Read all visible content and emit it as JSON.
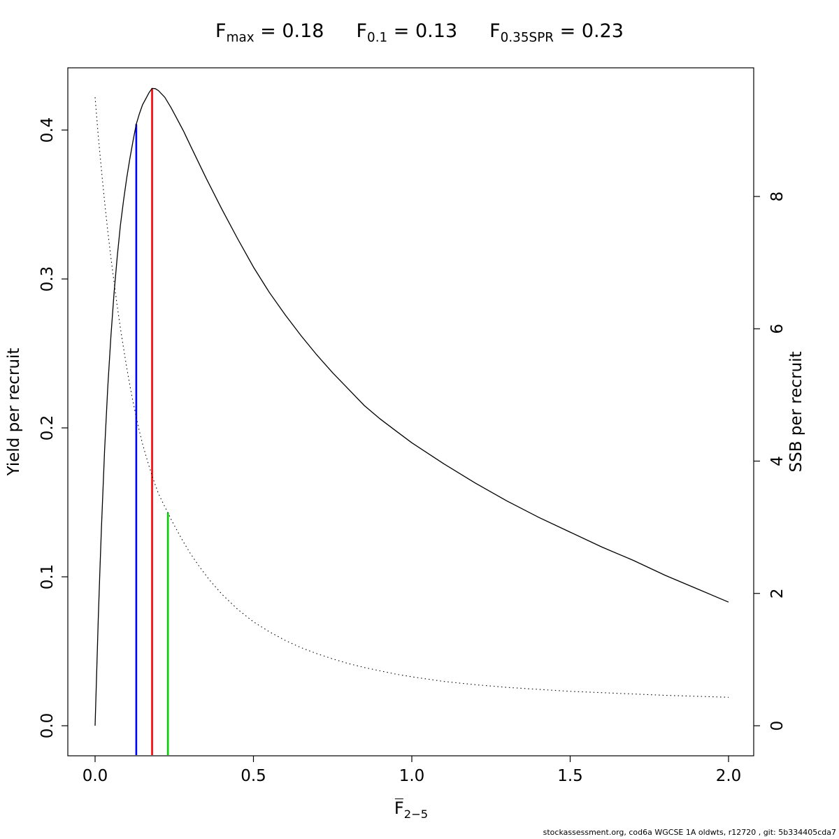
{
  "title": {
    "segments": [
      {
        "base": "F",
        "sub": "max",
        "rest": " = 0.18"
      },
      {
        "base": "F",
        "sub": "0.1",
        "rest": " = 0.13"
      },
      {
        "base": "F",
        "sub": "0.35SPR",
        "rest": " = 0.23"
      }
    ]
  },
  "footer": "stockassessment.org, cod6a WGCSE 1A oldwts, r12720 , git: 5b334405cda7",
  "chart_data": {
    "type": "line",
    "xlabel_base": "F",
    "xlabel_sub": "2−5",
    "ylabel_left": "Yield per recruit",
    "ylabel_right": "SSB per recruit",
    "xlim": [
      -0.086,
      2.079
    ],
    "ylim_left": [
      -0.02,
      0.442
    ],
    "ylim_right": [
      -0.45,
      9.95
    ],
    "grid": false,
    "x_ticks": [
      0.0,
      0.5,
      1.0,
      1.5,
      2.0
    ],
    "x_tick_labels": [
      "0.0",
      "0.5",
      "1.0",
      "1.5",
      "2.0"
    ],
    "y_left_ticks": [
      0.0,
      0.1,
      0.2,
      0.3,
      0.4
    ],
    "y_left_tick_labels": [
      "0.0",
      "0.1",
      "0.2",
      "0.3",
      "0.4"
    ],
    "y_right_ticks": [
      0,
      2,
      4,
      6,
      8
    ],
    "y_right_tick_labels": [
      "0",
      "2",
      "4",
      "6",
      "8"
    ],
    "reference_values": {
      "F_max": 0.18,
      "F_0.1": 0.13,
      "F_0.35SPR": 0.23
    },
    "series": [
      {
        "name": "yield-per-recruit",
        "axis": "left",
        "style": "solid",
        "color": "#000000",
        "points": [
          [
            0,
            0
          ],
          [
            0.005,
            0.036
          ],
          [
            0.01,
            0.071
          ],
          [
            0.015,
            0.103
          ],
          [
            0.02,
            0.133
          ],
          [
            0.03,
            0.185
          ],
          [
            0.04,
            0.227
          ],
          [
            0.05,
            0.262
          ],
          [
            0.06,
            0.291
          ],
          [
            0.07,
            0.315
          ],
          [
            0.08,
            0.336
          ],
          [
            0.09,
            0.353
          ],
          [
            0.1,
            0.368
          ],
          [
            0.11,
            0.381
          ],
          [
            0.12,
            0.393
          ],
          [
            0.13,
            0.404
          ],
          [
            0.14,
            0.411
          ],
          [
            0.15,
            0.417
          ],
          [
            0.16,
            0.421
          ],
          [
            0.17,
            0.425
          ],
          [
            0.18,
            0.428
          ],
          [
            0.19,
            0.4278
          ],
          [
            0.2,
            0.4265
          ],
          [
            0.22,
            0.422
          ],
          [
            0.24,
            0.415
          ],
          [
            0.26,
            0.407
          ],
          [
            0.28,
            0.399
          ],
          [
            0.3,
            0.39
          ],
          [
            0.35,
            0.368
          ],
          [
            0.4,
            0.347
          ],
          [
            0.45,
            0.327
          ],
          [
            0.5,
            0.308
          ],
          [
            0.55,
            0.291
          ],
          [
            0.6,
            0.276
          ],
          [
            0.65,
            0.262
          ],
          [
            0.7,
            0.249
          ],
          [
            0.75,
            0.237
          ],
          [
            0.8,
            0.226
          ],
          [
            0.85,
            0.215
          ],
          [
            0.9,
            0.206
          ],
          [
            0.95,
            0.198
          ],
          [
            1,
            0.19
          ],
          [
            1.1,
            0.176
          ],
          [
            1.2,
            0.163
          ],
          [
            1.3,
            0.151
          ],
          [
            1.4,
            0.14
          ],
          [
            1.5,
            0.13
          ],
          [
            1.6,
            0.12
          ],
          [
            1.7,
            0.111
          ],
          [
            1.8,
            0.101
          ],
          [
            1.9,
            0.092
          ],
          [
            2,
            0.083
          ]
        ]
      },
      {
        "name": "ssb-per-recruit",
        "axis": "right",
        "style": "dotted",
        "color": "#000000",
        "points": [
          [
            0,
            9.5
          ],
          [
            0.01,
            8.92
          ],
          [
            0.02,
            8.4
          ],
          [
            0.03,
            7.92
          ],
          [
            0.04,
            7.48
          ],
          [
            0.05,
            7.07
          ],
          [
            0.06,
            6.7
          ],
          [
            0.07,
            6.34
          ],
          [
            0.08,
            6.01
          ],
          [
            0.09,
            5.7
          ],
          [
            0.1,
            5.41
          ],
          [
            0.11,
            5.14
          ],
          [
            0.12,
            4.89
          ],
          [
            0.13,
            4.66
          ],
          [
            0.14,
            4.45
          ],
          [
            0.15,
            4.26
          ],
          [
            0.16,
            4.09
          ],
          [
            0.17,
            3.93
          ],
          [
            0.18,
            3.78
          ],
          [
            0.19,
            3.64
          ],
          [
            0.2,
            3.51
          ],
          [
            0.21,
            3.41
          ],
          [
            0.22,
            3.31
          ],
          [
            0.23,
            3.22
          ],
          [
            0.24,
            3.12
          ],
          [
            0.26,
            2.94
          ],
          [
            0.28,
            2.77
          ],
          [
            0.3,
            2.61
          ],
          [
            0.33,
            2.4
          ],
          [
            0.36,
            2.21
          ],
          [
            0.4,
            1.99
          ],
          [
            0.45,
            1.76
          ],
          [
            0.5,
            1.57
          ],
          [
            0.55,
            1.42
          ],
          [
            0.6,
            1.29
          ],
          [
            0.65,
            1.18
          ],
          [
            0.7,
            1.09
          ],
          [
            0.75,
            1.01
          ],
          [
            0.8,
            0.94
          ],
          [
            0.85,
            0.88
          ],
          [
            0.9,
            0.83
          ],
          [
            0.95,
            0.78
          ],
          [
            1,
            0.74
          ],
          [
            1.1,
            0.67
          ],
          [
            1.2,
            0.62
          ],
          [
            1.3,
            0.58
          ],
          [
            1.4,
            0.55
          ],
          [
            1.5,
            0.52
          ],
          [
            1.6,
            0.5
          ],
          [
            1.7,
            0.48
          ],
          [
            1.8,
            0.46
          ],
          [
            1.9,
            0.445
          ],
          [
            2,
            0.43
          ]
        ]
      }
    ],
    "ref_lines": [
      {
        "name": "F-0.1-line",
        "x": 0.13,
        "axis": "left",
        "y_top": 0.404,
        "color": "#0000FF"
      },
      {
        "name": "F-max-line",
        "x": 0.18,
        "axis": "left",
        "y_top": 0.428,
        "color": "#FF0000"
      },
      {
        "name": "F-0.35SPR-line",
        "x": 0.23,
        "axis": "right",
        "y_top": 3.22,
        "color": "#00D400"
      }
    ]
  }
}
